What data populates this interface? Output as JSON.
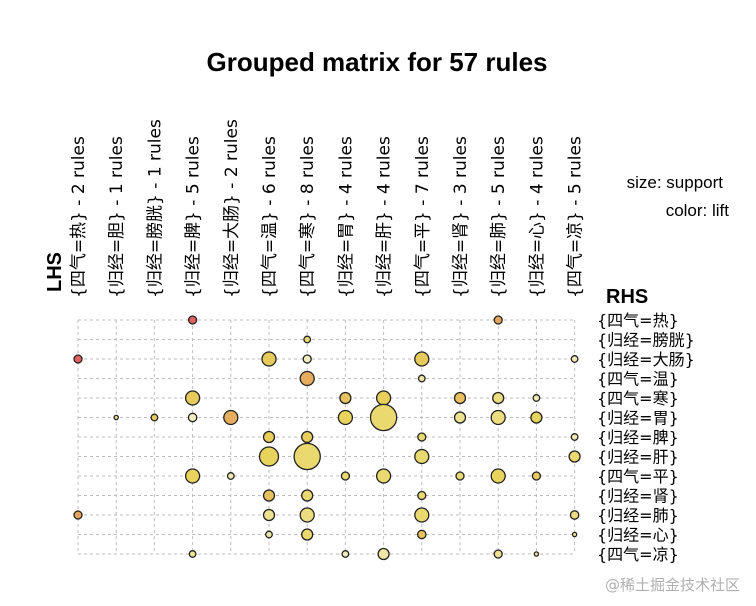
{
  "chart_data": {
    "type": "scatter",
    "subtype": "grouped-matrix",
    "title": "Grouped matrix for 57 rules",
    "xlabel": "LHS",
    "ylabel": "RHS",
    "legend": {
      "size": "size: support",
      "color": "color: lift",
      "placement": "right"
    },
    "grid": true,
    "lhs": [
      "{四气=热} - 2 rules",
      "{归经=胆} - 1 rules",
      "{归经=膀胱} - 1 rules",
      "{归经=脾} - 5 rules",
      "{归经=大肠} - 2 rules",
      "{四气=温} - 6 rules",
      "{四气=寒} - 8 rules",
      "{归经=胃} - 4 rules",
      "{归经=肝} - 4 rules",
      "{四气=平} - 7 rules",
      "{归经=肾} - 3 rules",
      "{归经=肺} - 5 rules",
      "{归经=心} - 4 rules",
      "{四气=凉} - 5 rules"
    ],
    "rhs": [
      "{四气=热}",
      "{归经=膀胱}",
      "{归经=大肠}",
      "{四气=温}",
      "{四气=寒}",
      "{归经=胃}",
      "{归经=脾}",
      "{归经=肝}",
      "{四气=平}",
      "{归经=肾}",
      "{归经=肺}",
      "{归经=心}",
      "{四气=凉}"
    ],
    "points": [
      {
        "lhs": 0,
        "rhs": 2,
        "support": 0.018,
        "lift": 4.0
      },
      {
        "lhs": 0,
        "rhs": 10,
        "support": 0.018,
        "lift": 2.6
      },
      {
        "lhs": 1,
        "rhs": 5,
        "support": 0.005,
        "lift": 1.3
      },
      {
        "lhs": 2,
        "rhs": 5,
        "support": 0.012,
        "lift": 1.8
      },
      {
        "lhs": 3,
        "rhs": 0,
        "support": 0.018,
        "lift": 4.0
      },
      {
        "lhs": 3,
        "rhs": 4,
        "support": 0.054,
        "lift": 1.8
      },
      {
        "lhs": 3,
        "rhs": 5,
        "support": 0.02,
        "lift": 1.05
      },
      {
        "lhs": 3,
        "rhs": 8,
        "support": 0.054,
        "lift": 1.6
      },
      {
        "lhs": 3,
        "rhs": 12,
        "support": 0.012,
        "lift": 1.3
      },
      {
        "lhs": 4,
        "rhs": 5,
        "support": 0.054,
        "lift": 2.4
      },
      {
        "lhs": 4,
        "rhs": 8,
        "support": 0.012,
        "lift": 1.1
      },
      {
        "lhs": 5,
        "rhs": 2,
        "support": 0.054,
        "lift": 1.8
      },
      {
        "lhs": 5,
        "rhs": 6,
        "support": 0.034,
        "lift": 1.7
      },
      {
        "lhs": 5,
        "rhs": 7,
        "support": 0.1,
        "lift": 1.6
      },
      {
        "lhs": 5,
        "rhs": 9,
        "support": 0.034,
        "lift": 2.0
      },
      {
        "lhs": 5,
        "rhs": 10,
        "support": 0.034,
        "lift": 1.3
      },
      {
        "lhs": 5,
        "rhs": 11,
        "support": 0.012,
        "lift": 1.2
      },
      {
        "lhs": 6,
        "rhs": 1,
        "support": 0.012,
        "lift": 1.5
      },
      {
        "lhs": 6,
        "rhs": 2,
        "support": 0.018,
        "lift": 1.05
      },
      {
        "lhs": 6,
        "rhs": 3,
        "support": 0.054,
        "lift": 2.4
      },
      {
        "lhs": 6,
        "rhs": 6,
        "support": 0.034,
        "lift": 1.7
      },
      {
        "lhs": 6,
        "rhs": 7,
        "support": 0.19,
        "lift": 1.5
      },
      {
        "lhs": 6,
        "rhs": 9,
        "support": 0.034,
        "lift": 1.5
      },
      {
        "lhs": 6,
        "rhs": 10,
        "support": 0.054,
        "lift": 1.4
      },
      {
        "lhs": 6,
        "rhs": 11,
        "support": 0.034,
        "lift": 1.5
      },
      {
        "lhs": 7,
        "rhs": 4,
        "support": 0.034,
        "lift": 2.0
      },
      {
        "lhs": 7,
        "rhs": 5,
        "support": 0.054,
        "lift": 1.6
      },
      {
        "lhs": 7,
        "rhs": 8,
        "support": 0.018,
        "lift": 1.5
      },
      {
        "lhs": 7,
        "rhs": 12,
        "support": 0.012,
        "lift": 1.1
      },
      {
        "lhs": 8,
        "rhs": 4,
        "support": 0.054,
        "lift": 1.7
      },
      {
        "lhs": 8,
        "rhs": 5,
        "support": 0.19,
        "lift": 1.5
      },
      {
        "lhs": 8,
        "rhs": 8,
        "support": 0.054,
        "lift": 1.5
      },
      {
        "lhs": 8,
        "rhs": 12,
        "support": 0.034,
        "lift": 1.2
      },
      {
        "lhs": 9,
        "rhs": 2,
        "support": 0.054,
        "lift": 1.8
      },
      {
        "lhs": 9,
        "rhs": 3,
        "support": 0.012,
        "lift": 1.2
      },
      {
        "lhs": 9,
        "rhs": 6,
        "support": 0.018,
        "lift": 1.5
      },
      {
        "lhs": 9,
        "rhs": 7,
        "support": 0.054,
        "lift": 1.5
      },
      {
        "lhs": 9,
        "rhs": 9,
        "support": 0.018,
        "lift": 1.5
      },
      {
        "lhs": 9,
        "rhs": 10,
        "support": 0.054,
        "lift": 1.5
      },
      {
        "lhs": 9,
        "rhs": 11,
        "support": 0.02,
        "lift": 2.0
      },
      {
        "lhs": 10,
        "rhs": 4,
        "support": 0.034,
        "lift": 2.0
      },
      {
        "lhs": 10,
        "rhs": 5,
        "support": 0.034,
        "lift": 1.3
      },
      {
        "lhs": 10,
        "rhs": 8,
        "support": 0.018,
        "lift": 1.5
      },
      {
        "lhs": 11,
        "rhs": 0,
        "support": 0.018,
        "lift": 2.6
      },
      {
        "lhs": 11,
        "rhs": 4,
        "support": 0.034,
        "lift": 1.4
      },
      {
        "lhs": 11,
        "rhs": 5,
        "support": 0.054,
        "lift": 1.4
      },
      {
        "lhs": 11,
        "rhs": 8,
        "support": 0.054,
        "lift": 1.6
      },
      {
        "lhs": 11,
        "rhs": 12,
        "support": 0.018,
        "lift": 1.3
      },
      {
        "lhs": 12,
        "rhs": 4,
        "support": 0.012,
        "lift": 1.1
      },
      {
        "lhs": 12,
        "rhs": 5,
        "support": 0.034,
        "lift": 1.6
      },
      {
        "lhs": 12,
        "rhs": 8,
        "support": 0.018,
        "lift": 1.8
      },
      {
        "lhs": 12,
        "rhs": 12,
        "support": 0.005,
        "lift": 1.2
      },
      {
        "lhs": 13,
        "rhs": 2,
        "support": 0.012,
        "lift": 1.1
      },
      {
        "lhs": 13,
        "rhs": 6,
        "support": 0.012,
        "lift": 1.1
      },
      {
        "lhs": 13,
        "rhs": 7,
        "support": 0.034,
        "lift": 1.5
      },
      {
        "lhs": 13,
        "rhs": 10,
        "support": 0.02,
        "lift": 1.4
      },
      {
        "lhs": 13,
        "rhs": 11,
        "support": 0.005,
        "lift": 1.2
      }
    ],
    "colors": {
      "low": "#f2f0c8",
      "mid": "#e8d45c",
      "high": "#e06060",
      "grid": "#bdbdbd"
    }
  },
  "watermark": "@稀土掘金技术社区"
}
